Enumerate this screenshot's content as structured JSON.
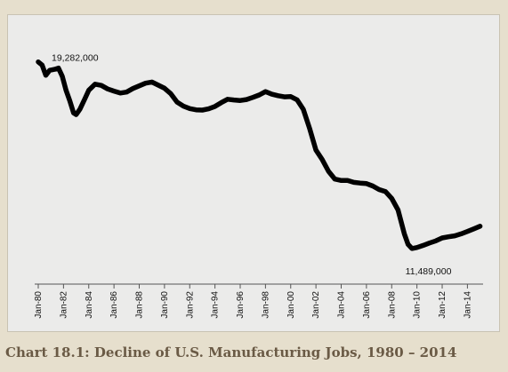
{
  "chart_data": {
    "type": "line",
    "title": "Chart 18.1: Decline of U.S. Manufacturing Jobs, 1980 – 2014",
    "xlabel": "",
    "ylabel": "",
    "tick_labels": [
      "Jan-80",
      "Jan-82",
      "Jan-84",
      "Jan-86",
      "Jan-88",
      "Jan-90",
      "Jan-92",
      "Jan-94",
      "Jan-96",
      "Jan-98",
      "Jan-00",
      "Jan-02",
      "Jan-04",
      "Jan-06",
      "Jan-08",
      "Jan-10",
      "Jan-12",
      "Jan-14"
    ],
    "xlim": [
      1980.0,
      2015.1
    ],
    "ylim": [
      10300000,
      19900000
    ],
    "grid": false,
    "legend": "none",
    "line_color": "#000000",
    "annotations": [
      {
        "text": "19,282,000",
        "x": 1980.0,
        "y": 19282000
      },
      {
        "text": "11,489,000",
        "x": 2010.0,
        "y": 11489000
      }
    ],
    "series": [
      {
        "x": [
          1980.0,
          1980.3,
          1980.6,
          1980.9,
          1981.3,
          1981.6,
          1981.9,
          1982.2,
          1982.5,
          1982.8,
          1983.0,
          1983.3,
          1983.7,
          1984.0,
          1984.5,
          1985.0,
          1985.5,
          1986.0,
          1986.5,
          1987.0,
          1987.5,
          1988.0,
          1988.5,
          1989.0,
          1989.5,
          1990.0,
          1990.5,
          1991.0,
          1991.5,
          1992.0,
          1992.5,
          1993.0,
          1993.5,
          1994.0,
          1994.5,
          1995.0,
          1995.5,
          1996.0,
          1996.5,
          1997.0,
          1997.5,
          1998.0,
          1998.5,
          1999.0,
          1999.5,
          2000.0,
          2000.5,
          2001.0,
          2001.5,
          2002.0,
          2002.5,
          2003.0,
          2003.5,
          2004.0,
          2004.5,
          2005.0,
          2005.5,
          2006.0,
          2006.5,
          2007.0,
          2007.5,
          2008.0,
          2008.5,
          2009.0,
          2009.3,
          2009.6,
          2010.0,
          2010.5,
          2011.0,
          2011.5,
          2012.0,
          2012.5,
          2013.0,
          2013.5,
          2014.0,
          2014.5,
          2015.0
        ],
        "y": [
          19282000,
          19150000,
          18720000,
          18930000,
          18970000,
          19020000,
          18680000,
          18100000,
          17650000,
          17150000,
          17080000,
          17300000,
          17750000,
          18100000,
          18350000,
          18300000,
          18150000,
          18060000,
          17980000,
          18020000,
          18170000,
          18280000,
          18390000,
          18440000,
          18310000,
          18180000,
          17950000,
          17600000,
          17430000,
          17330000,
          17280000,
          17270000,
          17320000,
          17420000,
          17580000,
          17720000,
          17690000,
          17670000,
          17710000,
          17800000,
          17900000,
          18040000,
          17930000,
          17870000,
          17820000,
          17830000,
          17700000,
          17300000,
          16500000,
          15600000,
          15200000,
          14710000,
          14390000,
          14330000,
          14330000,
          14250000,
          14220000,
          14200000,
          14100000,
          13950000,
          13870000,
          13580000,
          13100000,
          12100000,
          11660000,
          11489000,
          11530000,
          11620000,
          11720000,
          11810000,
          11930000,
          11980000,
          12020000,
          12100000,
          12200000,
          12310000,
          12420000
        ]
      }
    ]
  }
}
